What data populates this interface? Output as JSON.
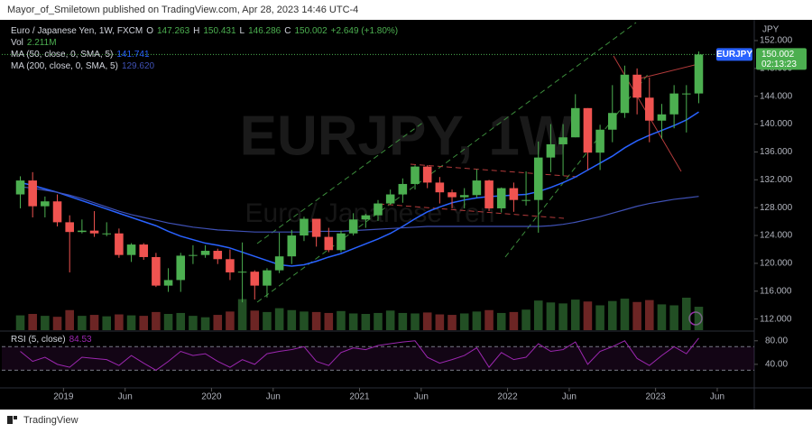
{
  "chart_data": {
    "type": "candlestick",
    "header": "Mayor_of_Smiletown published on TradingView.com, Apr 28, 2023 14:46 UTC-4",
    "symbol_title": "Euro / Japanese Yen, 1W, FXCM",
    "ohlc_legend": [
      {
        "key": "O",
        "text": "147.263"
      },
      {
        "key": "H",
        "text": "150.431"
      },
      {
        "key": "L",
        "text": "146.286"
      },
      {
        "key": "C",
        "text": "150.002"
      }
    ],
    "change": "+2.649 (+1.80%)",
    "volume_legend": {
      "name": "Vol",
      "text": "2.211M"
    },
    "watermark": "EURJPY, 1W",
    "watermark_sub": "Euro / Japanese Yen",
    "currency": "JPY",
    "ticker_tag": "EURJPY",
    "last_price": "150.002",
    "countdown": "02:13:23",
    "footer": "TradingView",
    "up_color": "#4caf50",
    "down_color": "#ef5350",
    "x": [
      "2018-09",
      "2018-10",
      "2018-11",
      "2018-12",
      "2019-01",
      "2019-02",
      "2019-03",
      "2019-04",
      "2019-05",
      "2019-06",
      "2019-07",
      "2019-08",
      "2019-09",
      "2019-10",
      "2019-11",
      "2019-12",
      "2020-01",
      "2020-02",
      "2020-03",
      "2020-04",
      "2020-05",
      "2020-06",
      "2020-07",
      "2020-08",
      "2020-09",
      "2020-10",
      "2020-11",
      "2020-12",
      "2021-01",
      "2021-02",
      "2021-03",
      "2021-04",
      "2021-05",
      "2021-06",
      "2021-07",
      "2021-08",
      "2021-09",
      "2021-10",
      "2021-11",
      "2021-12",
      "2022-01",
      "2022-02",
      "2022-03",
      "2022-04",
      "2022-05",
      "2022-06",
      "2022-07",
      "2022-08",
      "2022-09",
      "2022-10",
      "2022-11",
      "2022-12",
      "2023-01",
      "2023-02",
      "2023-03",
      "2023-04"
    ],
    "open": [
      129.9,
      131.9,
      128.2,
      128.9,
      125.9,
      124.5,
      124.7,
      124.3,
      124.3,
      121.2,
      122.7,
      120.9,
      116.8,
      117.6,
      121.1,
      121.2,
      121.8,
      120.6,
      118.7,
      118.8,
      116.8,
      119.0,
      121.0,
      124.0,
      126.4,
      123.8,
      121.9,
      124.3,
      126.3,
      126.9,
      128.6,
      129.9,
      131.4,
      133.9,
      131.6,
      130.2,
      129.5,
      129.8,
      131.9,
      127.9,
      130.8,
      129.1,
      129.1,
      135.2,
      137.1,
      138.1,
      142.3,
      135.9,
      139.2,
      141.6,
      147.1,
      143.8,
      140.5,
      141.4,
      144.4,
      144.4
    ],
    "high": [
      132.5,
      133.1,
      129.6,
      129.9,
      126.9,
      126.3,
      127.5,
      125.9,
      125.0,
      122.9,
      122.9,
      121.5,
      119.3,
      121.5,
      122.6,
      122.6,
      122.1,
      122.0,
      123.0,
      119.0,
      119.3,
      124.4,
      124.8,
      126.7,
      126.4,
      125.1,
      124.7,
      127.2,
      127.1,
      129.1,
      130.6,
      132.2,
      134.1,
      134.1,
      132.4,
      130.6,
      130.8,
      133.5,
      132.0,
      130.9,
      131.6,
      133.2,
      137.5,
      140.0,
      140.0,
      144.3,
      142.3,
      139.9,
      145.6,
      148.4,
      148.0,
      146.7,
      142.9,
      145.6,
      145.6,
      150.431
    ],
    "low": [
      127.9,
      126.6,
      126.6,
      125.3,
      118.7,
      124.3,
      123.8,
      123.9,
      120.8,
      120.2,
      120.5,
      116.6,
      115.9,
      115.9,
      119.9,
      120.8,
      119.9,
      117.6,
      114.4,
      114.8,
      115.1,
      118.6,
      119.9,
      123.2,
      122.4,
      121.6,
      121.6,
      124.0,
      125.1,
      126.1,
      128.4,
      128.7,
      130.6,
      130.8,
      128.6,
      127.9,
      127.9,
      129.4,
      127.5,
      127.3,
      127.4,
      128.3,
      124.4,
      133.1,
      132.6,
      138.1,
      133.4,
      133.4,
      137.4,
      140.9,
      141.4,
      137.4,
      137.9,
      139.4,
      138.8,
      143.0
    ],
    "close": [
      131.9,
      128.2,
      128.9,
      125.9,
      124.5,
      124.7,
      124.3,
      124.3,
      121.2,
      122.7,
      120.9,
      116.8,
      117.6,
      121.1,
      121.2,
      121.8,
      120.6,
      118.7,
      118.8,
      116.8,
      119.0,
      121.0,
      124.0,
      126.4,
      123.8,
      121.9,
      124.3,
      126.3,
      126.9,
      128.6,
      129.9,
      131.4,
      133.9,
      131.6,
      130.2,
      129.5,
      129.8,
      131.9,
      127.9,
      130.8,
      129.1,
      129.1,
      135.2,
      137.1,
      138.1,
      142.3,
      135.9,
      139.2,
      141.6,
      147.1,
      143.8,
      140.5,
      141.4,
      144.4,
      144.4,
      150.002
    ],
    "volume": [
      3.1,
      3.4,
      3.0,
      2.8,
      4.2,
      3.0,
      3.2,
      2.9,
      3.3,
      3.1,
      3.0,
      3.8,
      3.4,
      3.6,
      3.0,
      2.7,
      3.2,
      3.9,
      6.5,
      4.1,
      3.8,
      4.6,
      4.2,
      3.9,
      3.8,
      3.6,
      4.0,
      3.5,
      3.4,
      3.6,
      4.1,
      3.6,
      3.5,
      3.7,
      3.3,
      3.2,
      3.5,
      3.9,
      4.2,
      3.6,
      3.8,
      4.3,
      6.2,
      5.8,
      5.6,
      6.4,
      6.0,
      5.2,
      6.1,
      6.6,
      5.9,
      6.3,
      5.4,
      5.2,
      6.8,
      4.9
    ],
    "series": [
      {
        "name": "MA (50, close, 0, SMA, 5)",
        "value_label": "141.741",
        "color": "#2962ff",
        "values": [
          131.6,
          131.2,
          130.7,
          130.2,
          129.6,
          129.0,
          128.4,
          127.8,
          127.2,
          126.6,
          126.0,
          125.4,
          124.6,
          123.9,
          123.4,
          122.9,
          122.6,
          122.2,
          121.6,
          121.0,
          120.4,
          119.8,
          119.6,
          119.8,
          120.3,
          120.9,
          121.4,
          122.1,
          122.8,
          123.5,
          124.3,
          125.3,
          126.4,
          127.4,
          128.1,
          128.7,
          129.1,
          129.4,
          129.6,
          129.7,
          129.8,
          129.9,
          130.3,
          130.9,
          131.6,
          132.4,
          133.4,
          134.4,
          135.4,
          136.6,
          137.6,
          138.4,
          139.1,
          139.8,
          140.6,
          141.741
        ]
      },
      {
        "name": "MA (200, close, 0, SMA, 5)",
        "value_label": "129.620",
        "color": "#3f51b5",
        "values": [
          131.0,
          130.8,
          130.5,
          130.2,
          129.8,
          129.3,
          128.7,
          128.1,
          127.5,
          127.0,
          126.6,
          126.2,
          125.8,
          125.5,
          125.2,
          125.0,
          124.8,
          124.7,
          124.6,
          124.5,
          124.5,
          124.5,
          124.5,
          124.5,
          124.6,
          124.6,
          124.6,
          124.7,
          124.8,
          124.9,
          125.0,
          125.1,
          125.2,
          125.3,
          125.3,
          125.3,
          125.3,
          125.3,
          125.3,
          125.3,
          125.3,
          125.3,
          125.3,
          125.4,
          125.6,
          125.9,
          126.3,
          126.7,
          127.2,
          127.7,
          128.2,
          128.6,
          128.9,
          129.2,
          129.4,
          129.62
        ]
      }
    ],
    "rsi": {
      "name": "RSI (5, close)",
      "value_label": "84.53",
      "color": "#9c27b0",
      "values": [
        62,
        45,
        52,
        40,
        35,
        52,
        50,
        48,
        38,
        55,
        42,
        30,
        45,
        62,
        55,
        58,
        45,
        35,
        48,
        40,
        58,
        62,
        65,
        70,
        45,
        38,
        60,
        68,
        65,
        72,
        75,
        78,
        80,
        52,
        42,
        48,
        55,
        68,
        35,
        60,
        48,
        52,
        75,
        62,
        65,
        78,
        40,
        62,
        70,
        80,
        50,
        38,
        55,
        70,
        58,
        84.53
      ],
      "ylim": [
        3,
        95
      ],
      "yticks": [
        {
          "value": 80,
          "label": "80.00"
        },
        {
          "value": 40,
          "label": "40.00"
        }
      ],
      "bands": [
        70,
        30
      ]
    },
    "xlim": [
      "2018-08",
      "2023-09"
    ],
    "xticks": [
      {
        "value": "2019-01",
        "label": "2019"
      },
      {
        "value": "2019-06",
        "label": "Jun"
      },
      {
        "value": "2020-01",
        "label": "2020"
      },
      {
        "value": "2020-06",
        "label": "Jun"
      },
      {
        "value": "2021-01",
        "label": "2021"
      },
      {
        "value": "2021-06",
        "label": "Jun"
      },
      {
        "value": "2022-01",
        "label": "2022"
      },
      {
        "value": "2022-06",
        "label": "Jun"
      },
      {
        "value": "2023-01",
        "label": "2023"
      },
      {
        "value": "2023-06",
        "label": "Jun"
      }
    ],
    "ylim": [
      110.4,
      154.2
    ],
    "yticks": [
      {
        "value": 112,
        "label": "112.000"
      },
      {
        "value": 116,
        "label": "116.000"
      },
      {
        "value": 120,
        "label": "120.000"
      },
      {
        "value": 124,
        "label": "124.000"
      },
      {
        "value": 128,
        "label": "128.000"
      },
      {
        "value": 132,
        "label": "132.000"
      },
      {
        "value": 136,
        "label": "136.000"
      },
      {
        "value": 140,
        "label": "140.000"
      },
      {
        "value": 144,
        "label": "144.000"
      },
      {
        "value": 148,
        "label": "148.000"
      },
      {
        "value": 152,
        "label": "152.000"
      }
    ],
    "grid": false
  }
}
